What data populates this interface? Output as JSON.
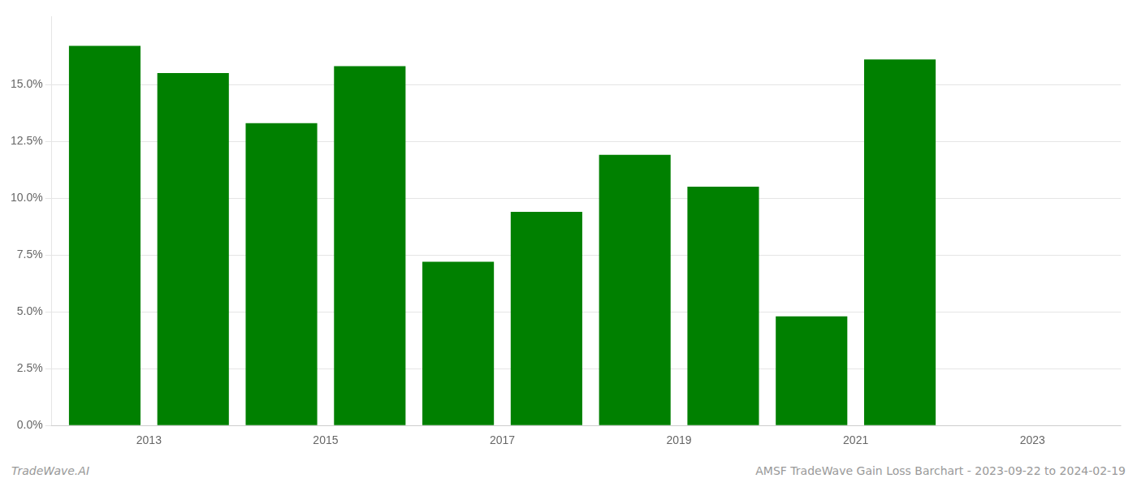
{
  "chart_data": {
    "type": "bar",
    "x": [
      2013,
      2014,
      2015,
      2016,
      2017,
      2018,
      2019,
      2020,
      2021,
      2022
    ],
    "values": [
      0.167,
      0.155,
      0.133,
      0.158,
      0.072,
      0.094,
      0.119,
      0.105,
      0.048,
      0.161
    ],
    "color": "#008000",
    "xlim": [
      2012.4,
      2024.5
    ],
    "xticks": [
      {
        "value": 2013.5,
        "label": "2013"
      },
      {
        "value": 2015.5,
        "label": "2015"
      },
      {
        "value": 2017.5,
        "label": "2017"
      },
      {
        "value": 2019.5,
        "label": "2019"
      },
      {
        "value": 2021.5,
        "label": "2021"
      },
      {
        "value": 2023.5,
        "label": "2023"
      }
    ],
    "ylim": [
      0,
      0.18
    ],
    "yticks": [
      {
        "value": 0,
        "label": "0.0%"
      },
      {
        "value": 0.025,
        "label": "2.5%"
      },
      {
        "value": 0.05,
        "label": "5.0%"
      },
      {
        "value": 0.075,
        "label": "7.5%"
      },
      {
        "value": 0.1,
        "label": "10.0%"
      },
      {
        "value": 0.125,
        "label": "12.5%"
      },
      {
        "value": 0.15,
        "label": "15.0%"
      }
    ],
    "grid": true,
    "annotations": [
      "TradeWave.AI",
      "AMSF TradeWave Gain Loss Barchart - 2023-09-22 to 2024-02-19"
    ]
  }
}
